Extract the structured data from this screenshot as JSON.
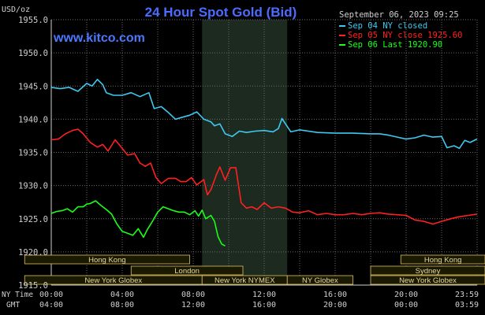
{
  "header": {
    "title": "24 Hour Spot Gold (Bid)",
    "unit_label": "USD/oz",
    "datetime": "September 06, 2023 09:25",
    "watermark": "www.kitco.com"
  },
  "legend": [
    {
      "label": "Sep 04 NY closed",
      "color": "#3fc8f0"
    },
    {
      "label": "Sep 05 NY close 1925.60",
      "color": "#ff2020"
    },
    {
      "label": "Sep 06 Last 1920.90",
      "color": "#19ff19"
    }
  ],
  "colors": {
    "background": "#000000",
    "plot_background": "#000000",
    "grid": "#6a6a6a",
    "highlight_band": "#1c2a20",
    "title": "#4a6cff",
    "watermark": "#4a78ff",
    "axis_text": "#cfcfcf",
    "session_bar_fill": "#1a1a00",
    "session_bar_border": "#e0c060",
    "session_text": "#e8d9a0",
    "axis_line": "#d0d0d0"
  },
  "axis": {
    "y_ticks": [
      "1955.0",
      "1950.0",
      "1945.0",
      "1940.0",
      "1935.0",
      "1930.0",
      "1925.0",
      "1920.0",
      "1915.0"
    ],
    "ny_time_label": "NY Time",
    "gmt_label": "GMT",
    "ny_ticks": [
      "00:00",
      "04:00",
      "08:00",
      "12:00",
      "16:00",
      "20:00",
      "23:59"
    ],
    "gmt_ticks": [
      "04:00",
      "08:00",
      "12:00",
      "16:00",
      "20:00",
      "00:00",
      "03:59"
    ]
  },
  "sessions": [
    {
      "label": "Hong Kong",
      "start": -1.5,
      "end": 7.8,
      "row": 0
    },
    {
      "label": "London",
      "start": 4.5,
      "end": 10.8,
      "row": 1
    },
    {
      "label": "New York Globex",
      "start": -1.5,
      "end": 8.5,
      "row": 2
    },
    {
      "label": "New York NYMEX",
      "start": 8.5,
      "end": 13.3,
      "row": 2
    },
    {
      "label": "NY Globex",
      "start": 13.3,
      "end": 17.0,
      "row": 2
    },
    {
      "label": "Hong Kong",
      "start": 19.7,
      "end": 25.0,
      "row": 0
    },
    {
      "label": "Sydney",
      "start": 18.0,
      "end": 25.0,
      "row": 1
    },
    {
      "label": "New York Globex",
      "start": 18.0,
      "end": 25.0,
      "row": 2
    }
  ],
  "chart_data": {
    "type": "line",
    "title": "24 Hour Spot Gold (Bid)",
    "ylabel": "USD/oz",
    "xlabel": "NY Time / GMT",
    "xlim": [
      0,
      24
    ],
    "ylim": [
      1915,
      1955
    ],
    "grid": true,
    "legend_position": "top-right",
    "highlight_band": [
      8.5,
      13.3
    ],
    "series": [
      {
        "name": "Sep 04 NY closed",
        "color": "#3fc8f0",
        "x": [
          0,
          0.5,
          1.0,
          1.5,
          2.0,
          2.3,
          2.6,
          2.9,
          3.1,
          3.5,
          4.0,
          4.5,
          5.0,
          5.5,
          5.8,
          6.2,
          6.6,
          7.0,
          7.4,
          7.8,
          8.2,
          8.6,
          9.0,
          9.2,
          9.5,
          9.8,
          10.2,
          10.6,
          11.0,
          11.5,
          12.0,
          12.5,
          12.8,
          13.0,
          13.5,
          14.0,
          15.0,
          16.0,
          17.0,
          18.0,
          18.5,
          19.0,
          19.5,
          20.0,
          20.5,
          21.0,
          21.5,
          22.0,
          22.3,
          22.7,
          23.0,
          23.3,
          23.6,
          23.99
        ],
        "y": [
          1944.8,
          1944.6,
          1944.8,
          1944.2,
          1945.4,
          1945.0,
          1946.0,
          1945.2,
          1944.0,
          1943.6,
          1943.6,
          1944.0,
          1943.4,
          1944.0,
          1941.6,
          1941.9,
          1941.0,
          1940.0,
          1940.3,
          1940.6,
          1941.1,
          1940.0,
          1939.6,
          1939.0,
          1939.3,
          1937.8,
          1937.4,
          1938.2,
          1938.0,
          1938.2,
          1938.3,
          1938.1,
          1938.6,
          1940.1,
          1938.1,
          1938.4,
          1938.0,
          1937.9,
          1937.9,
          1937.8,
          1937.8,
          1937.6,
          1937.3,
          1937.0,
          1937.2,
          1937.6,
          1937.3,
          1937.4,
          1935.7,
          1936.0,
          1935.6,
          1936.8,
          1936.5,
          1937.0
        ]
      },
      {
        "name": "Sep 05 NY close 1925.60",
        "color": "#ff2020",
        "x": [
          0,
          0.4,
          0.8,
          1.2,
          1.5,
          1.8,
          2.2,
          2.6,
          2.9,
          3.2,
          3.6,
          4.0,
          4.3,
          4.7,
          5.0,
          5.3,
          5.6,
          5.9,
          6.2,
          6.6,
          7.0,
          7.3,
          7.6,
          7.9,
          8.2,
          8.6,
          8.8,
          9.0,
          9.3,
          9.5,
          9.8,
          10.1,
          10.4,
          10.7,
          11.0,
          11.3,
          11.6,
          12.0,
          12.4,
          12.8,
          13.2,
          13.6,
          14.0,
          14.5,
          15.0,
          15.5,
          16.0,
          16.5,
          17.0,
          17.5,
          18.0,
          18.5,
          19.0,
          19.5,
          20.0,
          20.5,
          21.0,
          21.5,
          22.0,
          22.5,
          23.0,
          23.5,
          23.99
        ],
        "y": [
          1936.9,
          1937.0,
          1937.8,
          1938.3,
          1938.5,
          1937.8,
          1936.5,
          1935.8,
          1936.2,
          1935.2,
          1936.9,
          1935.6,
          1934.6,
          1934.8,
          1933.4,
          1932.9,
          1933.4,
          1931.2,
          1930.3,
          1931.1,
          1931.1,
          1930.6,
          1930.6,
          1931.2,
          1930.1,
          1930.9,
          1928.6,
          1929.4,
          1931.6,
          1932.8,
          1930.8,
          1932.7,
          1932.7,
          1927.4,
          1926.6,
          1926.8,
          1926.4,
          1927.4,
          1926.6,
          1926.8,
          1926.6,
          1926.0,
          1925.9,
          1926.2,
          1925.6,
          1925.8,
          1925.6,
          1925.6,
          1925.8,
          1925.6,
          1925.8,
          1925.9,
          1925.7,
          1925.6,
          1925.5,
          1924.8,
          1924.6,
          1924.2,
          1924.6,
          1925.0,
          1925.3,
          1925.5,
          1925.7
        ]
      },
      {
        "name": "Sep 06 Last 1920.90",
        "color": "#19ff19",
        "x": [
          0,
          0.3,
          0.6,
          0.9,
          1.2,
          1.5,
          1.8,
          2.0,
          2.2,
          2.5,
          2.8,
          3.1,
          3.4,
          3.7,
          4.0,
          4.3,
          4.6,
          4.9,
          5.2,
          5.4,
          5.7,
          6.0,
          6.3,
          6.6,
          6.9,
          7.2,
          7.5,
          7.8,
          8.1,
          8.3,
          8.5,
          8.7,
          9.0,
          9.2,
          9.4,
          9.6,
          9.8
        ],
        "y": [
          1925.8,
          1926.1,
          1926.2,
          1926.5,
          1926.0,
          1926.8,
          1926.8,
          1927.2,
          1927.3,
          1927.7,
          1927.0,
          1926.4,
          1925.7,
          1924.2,
          1923.1,
          1922.8,
          1922.5,
          1923.5,
          1922.2,
          1923.3,
          1924.6,
          1926.0,
          1926.8,
          1926.5,
          1926.2,
          1926.0,
          1926.0,
          1925.6,
          1926.2,
          1925.4,
          1926.3,
          1925.0,
          1925.5,
          1924.6,
          1922.3,
          1921.2,
          1920.9
        ]
      }
    ]
  }
}
